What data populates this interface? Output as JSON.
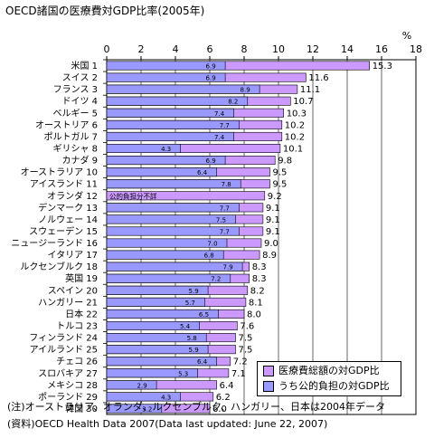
{
  "title": "OECD諸国の医療費対GDP比率(2005年)",
  "notes": [
    "(注)オーストラリア、オランダ、ルクセンブルク、ハンガリー、日本は2004年データ",
    "(資料)OECD Health Data 2007(Data last updated: June 22, 2007)"
  ],
  "colors": {
    "total": "#cc99ff",
    "public": "#9999ff",
    "axis": "#000000",
    "grid": "#000000"
  },
  "chart_data": {
    "type": "bar",
    "orientation": "horizontal",
    "title": "OECD諸国の医療費対GDP比率(2005年)",
    "xlabel": "%",
    "xlim": [
      0,
      18
    ],
    "xticks": [
      0,
      2,
      4,
      6,
      8,
      10,
      12,
      14,
      16,
      18
    ],
    "grid": true,
    "legend_position": "bottom-right",
    "categories": [
      "米国 1",
      "スイス 2",
      "フランス 3",
      "ドイツ 4",
      "ベルギー 5",
      "オーストリア 6",
      "ポルトガル 7",
      "ギリシャ 8",
      "カナダ 9",
      "オーストラリア 10",
      "アイスランド 11",
      "オランダ 12",
      "デンマーク 13",
      "ノルウェー 14",
      "スウェーデン 15",
      "ニュージーランド 16",
      "イタリア 17",
      "ルクセンブルク 18",
      "英国 19",
      "スペイン 20",
      "ハンガリー 21",
      "日本 22",
      "トルコ 23",
      "フィンランド 24",
      "アイルランド 25",
      "チェコ 26",
      "スロバキア 27",
      "メキシコ 28",
      "ポーランド 29",
      "韓国 30"
    ],
    "series": [
      {
        "name": "医療費総額の対GDP比",
        "color": "#cc99ff",
        "values": [
          15.3,
          11.6,
          11.1,
          10.7,
          10.3,
          10.2,
          10.2,
          10.1,
          9.8,
          9.5,
          9.5,
          9.2,
          9.1,
          9.1,
          9.1,
          9.0,
          8.9,
          8.3,
          8.3,
          8.2,
          8.1,
          8.0,
          7.6,
          7.5,
          7.5,
          7.2,
          7.1,
          6.4,
          6.2,
          6.0
        ],
        "labels": [
          "15.3",
          "11.6",
          "11.1",
          "10.7",
          "10.3",
          "10.2",
          "10.2",
          "10.1",
          "9.8",
          "9.5",
          "9.5",
          "9.2",
          "9.1",
          "9.1",
          "9.1",
          "9.0",
          "8.9",
          "8.3",
          "8.3",
          "8.2",
          "8.1",
          "8.0",
          "7.6",
          "7.5",
          "7.5",
          "7.2",
          "7.1",
          "6.4",
          "6.2",
          "6.0"
        ]
      },
      {
        "name": "うち公的負担の対GDP比",
        "color": "#9999ff",
        "values": [
          6.9,
          6.9,
          8.9,
          8.2,
          7.4,
          7.7,
          7.4,
          4.3,
          6.9,
          6.4,
          7.8,
          null,
          7.7,
          7.5,
          7.7,
          7.0,
          6.8,
          7.9,
          7.2,
          5.9,
          5.7,
          6.5,
          5.4,
          5.8,
          5.9,
          6.4,
          5.3,
          2.9,
          4.3,
          3.2
        ],
        "labels": [
          "6.9",
          "6.9",
          "8.9",
          "8.2",
          "7.4",
          "7.7",
          "7.4",
          "4.3",
          "6.9",
          "6.4",
          "7.8",
          "",
          "7.7",
          "7.5",
          "7.7",
          "7.0",
          "6.8",
          "7.9",
          "7.2",
          "5.9",
          "5.7",
          "6.5",
          "5.4",
          "5.8",
          "5.9",
          "6.4",
          "5.3",
          "2.9",
          "4.3",
          "3.2"
        ]
      }
    ],
    "annotations": [
      {
        "category": "オランダ 12",
        "text": "公的負担分不詳"
      }
    ]
  }
}
